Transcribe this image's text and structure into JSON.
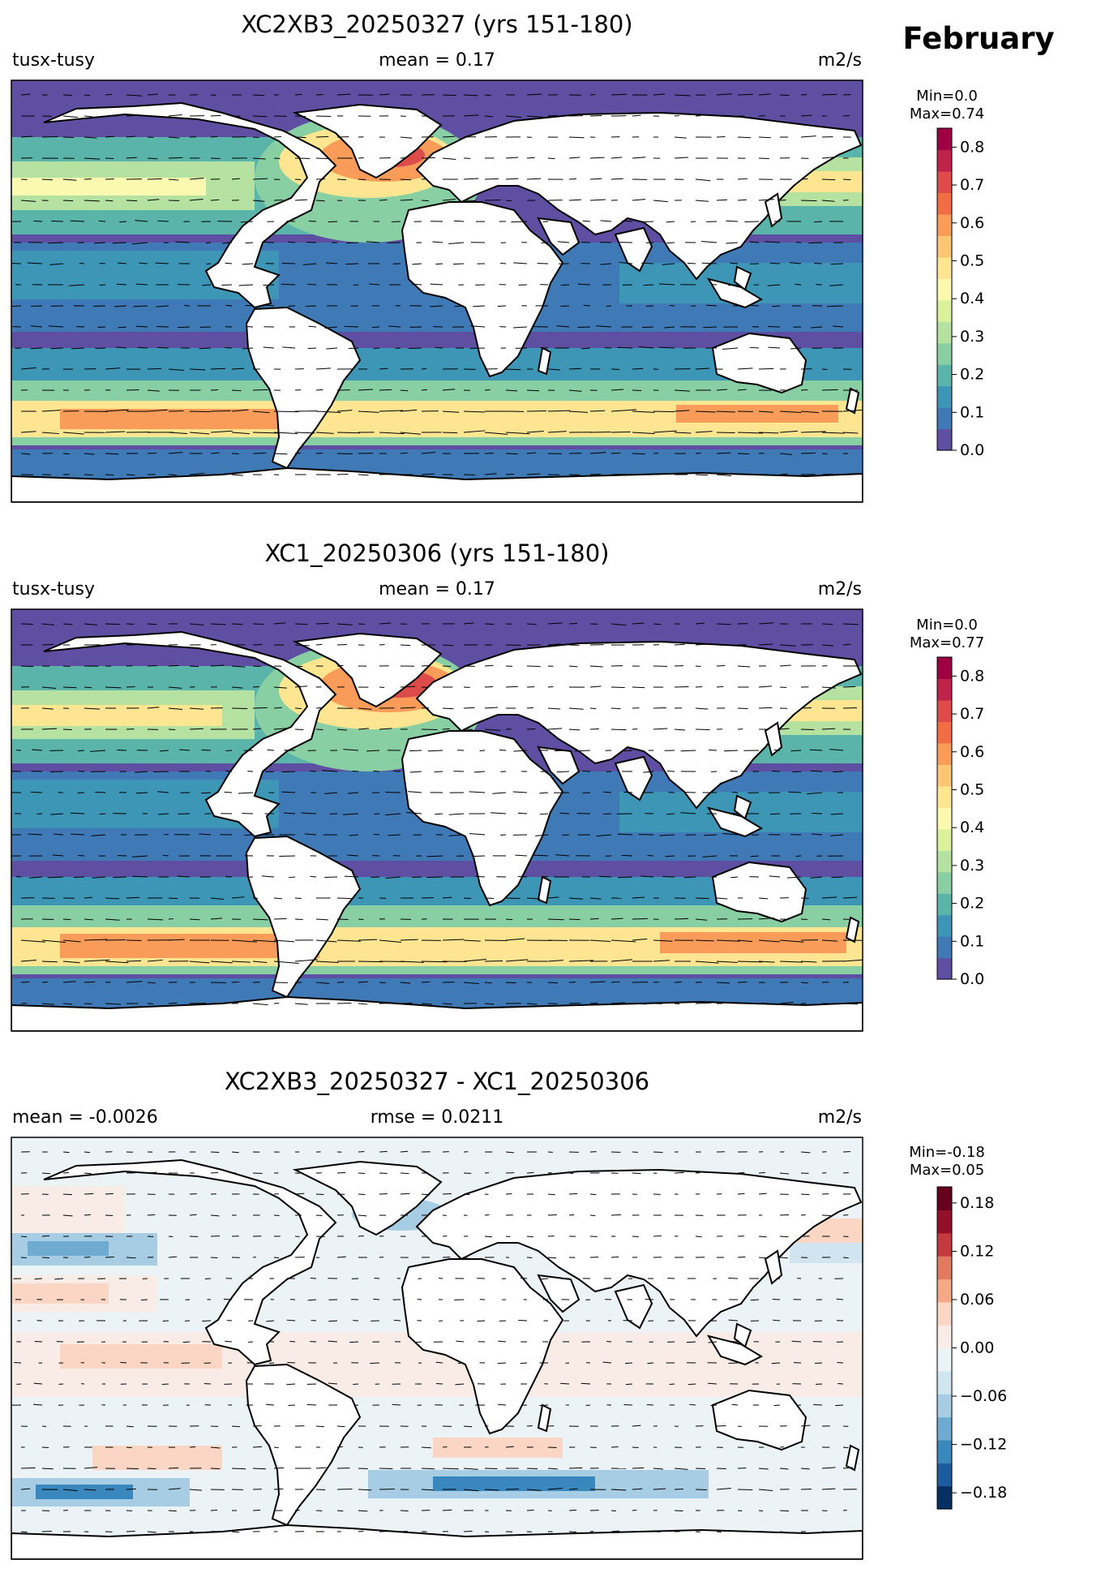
{
  "figure": {
    "month": "February"
  },
  "panels": [
    {
      "id": "model",
      "title": "XC2XB3_20250327 (yrs 151-180)",
      "left_label": "tusx-tusy",
      "center_label": "mean = 0.17",
      "right_label": "m2/s",
      "colorbar": {
        "min_label": "Min=0.0",
        "max_label": "Max=0.74",
        "ticks": [
          "0.0",
          "0.1",
          "0.2",
          "0.3",
          "0.4",
          "0.5",
          "0.6",
          "0.7",
          "0.8"
        ],
        "tick_values": [
          0,
          0.1,
          0.2,
          0.3,
          0.4,
          0.5,
          0.6,
          0.7,
          0.8
        ],
        "range": [
          0,
          0.85
        ],
        "colormap": "Spectral_r",
        "colors": [
          "#5e4fa2",
          "#3f7ab7",
          "#3e96b7",
          "#5ab4aa",
          "#88cfa4",
          "#b5e1a1",
          "#dcf19c",
          "#fbf8b0",
          "#fee591",
          "#fdc574",
          "#f99c59",
          "#f16e45",
          "#de4b4b",
          "#be2449",
          "#9e0142"
        ]
      }
    },
    {
      "id": "reference",
      "title": "XC1_20250306 (yrs 151-180)",
      "left_label": "tusx-tusy",
      "center_label": "mean = 0.17",
      "right_label": "m2/s",
      "colorbar": {
        "min_label": "Min=0.0",
        "max_label": "Max=0.77",
        "ticks": [
          "0.0",
          "0.1",
          "0.2",
          "0.3",
          "0.4",
          "0.5",
          "0.6",
          "0.7",
          "0.8"
        ],
        "tick_values": [
          0,
          0.1,
          0.2,
          0.3,
          0.4,
          0.5,
          0.6,
          0.7,
          0.8
        ],
        "range": [
          0,
          0.85
        ],
        "colormap": "Spectral_r",
        "colors": [
          "#5e4fa2",
          "#3f7ab7",
          "#3e96b7",
          "#5ab4aa",
          "#88cfa4",
          "#b5e1a1",
          "#dcf19c",
          "#fbf8b0",
          "#fee591",
          "#fdc574",
          "#f99c59",
          "#f16e45",
          "#de4b4b",
          "#be2449",
          "#9e0142"
        ]
      }
    },
    {
      "id": "difference",
      "title": "XC2XB3_20250327 - XC1_20250306",
      "left_label": "mean = -0.0026",
      "center_label": "rmse = 0.0211",
      "right_label": "m2/s",
      "colorbar": {
        "min_label": "Min=-0.18",
        "max_label": "Max=0.05",
        "ticks": [
          "0.18",
          "0.12",
          "0.06",
          "0.00",
          "−0.06",
          "−0.12",
          "−0.18"
        ],
        "tick_values": [
          0.18,
          0.12,
          0.06,
          0,
          -0.06,
          -0.12,
          -0.18
        ],
        "range": [
          -0.2,
          0.2
        ],
        "colormap": "RdBu_r",
        "colors": [
          "#053061",
          "#1c5c9e",
          "#3a87bd",
          "#6fabd0",
          "#a6cde3",
          "#d1e5f0",
          "#ecf3f7",
          "#f9ece6",
          "#fbd6c4",
          "#f4a883",
          "#e07a60",
          "#c4393e",
          "#94102a",
          "#67001f"
        ]
      }
    }
  ]
}
